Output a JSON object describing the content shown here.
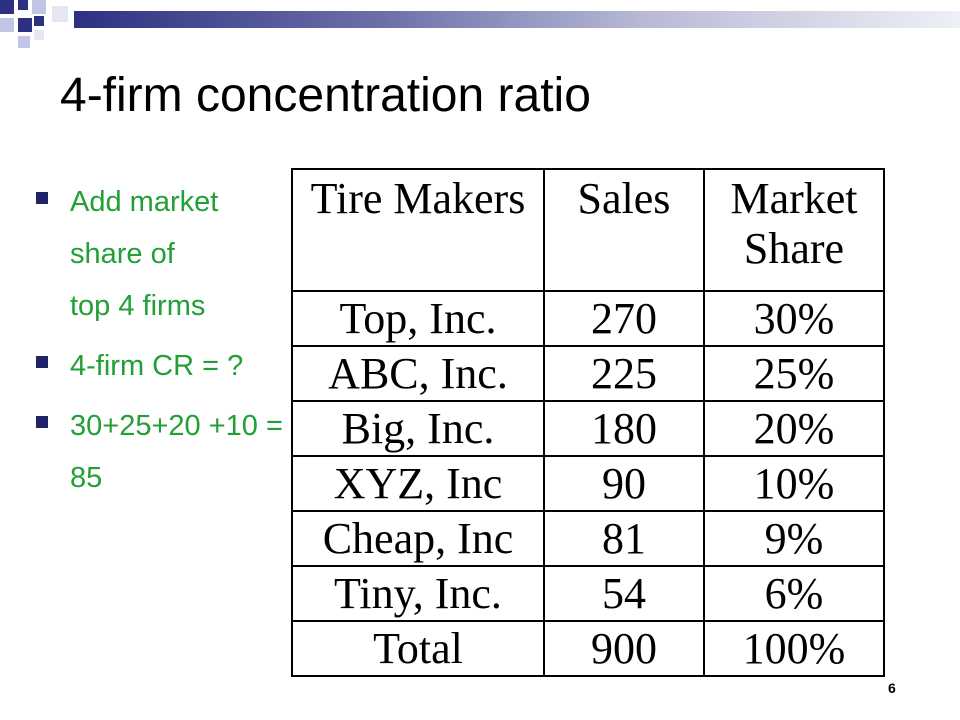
{
  "slide": {
    "title": "4-firm concentration ratio",
    "page_number": "6"
  },
  "bullets": [
    "Add market share of top 4 firms",
    "4-firm CR = ?",
    "30+25+20 +10 = 85"
  ],
  "table": {
    "headers": [
      "Tire Makers",
      "Sales",
      "Market Share"
    ],
    "rows": [
      [
        "Top, Inc.",
        "270",
        "30%"
      ],
      [
        "ABC, Inc.",
        "225",
        "25%"
      ],
      [
        "Big, Inc.",
        "180",
        "20%"
      ],
      [
        "XYZ, Inc",
        "90",
        "10%"
      ],
      [
        "Cheap, Inc",
        "81",
        "9%"
      ],
      [
        "Tiny, Inc.",
        "54",
        "6%"
      ],
      [
        "Total",
        "900",
        "100%"
      ]
    ]
  },
  "colors": {
    "title_bar_dark": "#2d3182",
    "bullet_text": "#22a036",
    "bullet_mark": "#1e2465"
  }
}
